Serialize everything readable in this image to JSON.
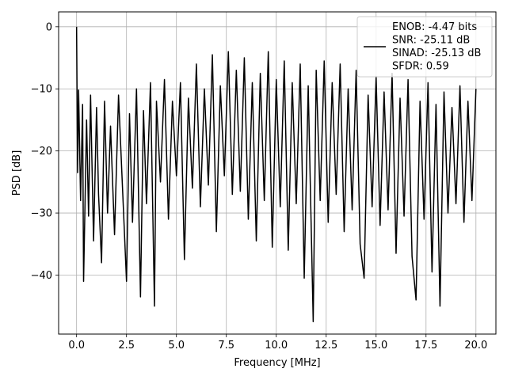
{
  "chart_data": {
    "type": "line",
    "title": "",
    "xlabel": "Frequency [MHz]",
    "ylabel": "PSD [dB]",
    "xlim": [
      -0.9,
      21.0
    ],
    "ylim": [
      -49.5,
      2.4
    ],
    "x_ticks": [
      0.0,
      2.5,
      5.0,
      7.5,
      10.0,
      12.5,
      15.0,
      17.5,
      20.0
    ],
    "x_tick_labels": [
      "0.0",
      "2.5",
      "5.0",
      "7.5",
      "10.0",
      "12.5",
      "15.0",
      "17.5",
      "20.0"
    ],
    "y_ticks": [
      0,
      -10,
      -20,
      -30,
      -40
    ],
    "y_tick_labels": [
      "0",
      "−10",
      "−20",
      "−30",
      "−40"
    ],
    "grid": true,
    "legend_position": "top-right",
    "series": [
      {
        "name": "ENOB: -4.47 bits\nSNR: -25.11 dB\nSINAD: -25.13 dB\nSFDR: 0.59",
        "color": "#000000",
        "x": [
          0.0,
          0.05,
          0.1,
          0.2,
          0.3,
          0.35,
          0.5,
          0.6,
          0.7,
          0.85,
          1.0,
          1.1,
          1.25,
          1.4,
          1.55,
          1.7,
          1.9,
          2.1,
          2.3,
          2.5,
          2.65,
          2.8,
          3.0,
          3.2,
          3.35,
          3.5,
          3.7,
          3.9,
          4.0,
          4.2,
          4.4,
          4.6,
          4.8,
          5.0,
          5.2,
          5.4,
          5.6,
          5.8,
          6.0,
          6.2,
          6.4,
          6.6,
          6.8,
          7.0,
          7.2,
          7.4,
          7.6,
          7.8,
          8.0,
          8.2,
          8.4,
          8.6,
          8.8,
          9.0,
          9.2,
          9.4,
          9.6,
          9.8,
          10.0,
          10.2,
          10.4,
          10.6,
          10.8,
          11.0,
          11.2,
          11.4,
          11.6,
          11.85,
          12.0,
          12.2,
          12.4,
          12.6,
          12.8,
          13.0,
          13.2,
          13.4,
          13.6,
          13.8,
          14.0,
          14.2,
          14.4,
          14.6,
          14.8,
          15.0,
          15.2,
          15.4,
          15.6,
          15.8,
          16.0,
          16.2,
          16.4,
          16.6,
          16.8,
          17.0,
          17.2,
          17.4,
          17.6,
          17.8,
          18.0,
          18.2,
          18.4,
          18.6,
          18.8,
          19.0,
          19.2,
          19.4,
          19.6,
          19.8,
          20.0
        ],
        "y": [
          0.0,
          -23.5,
          -10.2,
          -28.0,
          -12.5,
          -41.0,
          -15.0,
          -30.5,
          -11.0,
          -34.5,
          -13.0,
          -27.0,
          -38.0,
          -12.0,
          -30.0,
          -16.0,
          -33.5,
          -11.0,
          -26.0,
          -41.0,
          -14.0,
          -31.5,
          -10.0,
          -43.5,
          -13.5,
          -28.5,
          -9.0,
          -45.0,
          -12.0,
          -25.0,
          -8.5,
          -31.0,
          -12.0,
          -24.0,
          -9.0,
          -37.5,
          -11.5,
          -26.0,
          -6.0,
          -29.0,
          -10.0,
          -25.5,
          -4.5,
          -33.0,
          -9.5,
          -24.0,
          -4.0,
          -27.0,
          -7.0,
          -26.5,
          -5.0,
          -31.0,
          -9.0,
          -34.5,
          -7.5,
          -28.0,
          -4.0,
          -35.5,
          -8.5,
          -29.0,
          -5.5,
          -36.0,
          -9.0,
          -28.5,
          -6.0,
          -40.5,
          -9.5,
          -47.5,
          -7.0,
          -28.0,
          -5.5,
          -31.5,
          -9.0,
          -27.0,
          -6.0,
          -33.0,
          -10.0,
          -29.5,
          -7.0,
          -35.0,
          -40.5,
          -11.0,
          -29.0,
          -8.0,
          -32.0,
          -10.5,
          -29.5,
          -7.5,
          -36.5,
          -11.5,
          -30.5,
          -8.5,
          -37.0,
          -44.0,
          -12.0,
          -31.0,
          -9.0,
          -39.5,
          -12.5,
          -45.0,
          -10.5,
          -30.0,
          -13.0,
          -28.5,
          -9.5,
          -31.5,
          -12.0,
          -28.0,
          -10.0
        ]
      }
    ]
  }
}
